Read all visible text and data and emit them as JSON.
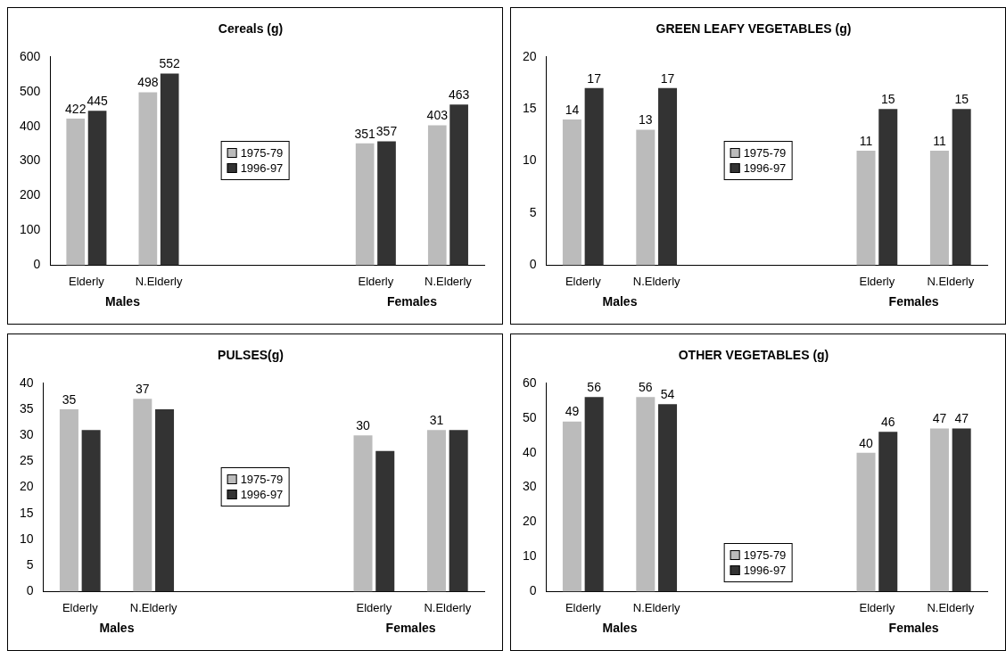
{
  "chart_data": [
    {
      "type": "bar",
      "title": "Cereals (g)",
      "categories": [
        "Elderly",
        "N.Elderly",
        null,
        null,
        "Elderly",
        "N.Elderly"
      ],
      "ylim": [
        0,
        600
      ],
      "yticks": [
        0,
        100,
        200,
        300,
        400,
        500,
        600
      ],
      "grid": false,
      "legend": "center",
      "data_labels": true,
      "annotations": [
        "Males",
        "Females"
      ],
      "series": [
        {
          "name": "1975-79",
          "color": "#bbbbbb",
          "values": [
            422,
            498,
            null,
            null,
            351,
            403
          ]
        },
        {
          "name": "1996-97",
          "color": "#333333",
          "values": [
            445,
            552,
            null,
            null,
            357,
            463
          ]
        }
      ]
    },
    {
      "type": "bar",
      "title": "GREEN LEAFY VEGETABLES (g)",
      "categories": [
        "Elderly",
        "N.Elderly",
        null,
        null,
        "Elderly",
        "N.Elderly"
      ],
      "ylim": [
        0,
        20
      ],
      "yticks": [
        0,
        5,
        10,
        15,
        20
      ],
      "grid": false,
      "legend": "center",
      "data_labels": true,
      "annotations": [
        "Males",
        "Females"
      ],
      "series": [
        {
          "name": "1975-79",
          "color": "#bbbbbb",
          "values": [
            14,
            13,
            null,
            null,
            11,
            11
          ]
        },
        {
          "name": "1996-97",
          "color": "#333333",
          "values": [
            17,
            17,
            null,
            null,
            15,
            15
          ]
        }
      ]
    },
    {
      "type": "bar",
      "title": "PULSES(g)",
      "categories": [
        "Elderly",
        "N.Elderly",
        null,
        null,
        "Elderly",
        "N.Elderly"
      ],
      "ylim": [
        0,
        40
      ],
      "yticks": [
        0,
        5,
        10,
        15,
        20,
        25,
        30,
        35,
        40
      ],
      "grid": false,
      "legend": "center",
      "annotations": [
        "Males",
        "Females"
      ],
      "series": [
        {
          "name": "1975-79",
          "color": "#bbbbbb",
          "values": [
            35,
            37,
            null,
            null,
            30,
            31
          ],
          "value_labels": [
            "35",
            "37",
            null,
            null,
            "30",
            "31"
          ]
        },
        {
          "name": "1996-97",
          "color": "#333333",
          "values": [
            31,
            35,
            null,
            null,
            27,
            31
          ]
        }
      ]
    },
    {
      "type": "bar",
      "title": "OTHER VEGETABLES (g)",
      "categories": [
        "Elderly",
        "N.Elderly",
        null,
        null,
        "Elderly",
        "N.Elderly"
      ],
      "ylim": [
        0,
        60
      ],
      "yticks": [
        0,
        10,
        20,
        30,
        40,
        50,
        60
      ],
      "grid": false,
      "legend": "bottom",
      "data_labels": true,
      "annotations": [
        "Males",
        "Females"
      ],
      "series": [
        {
          "name": "1975-79",
          "color": "#bbbbbb",
          "values": [
            49,
            56,
            null,
            null,
            40,
            47
          ]
        },
        {
          "name": "1996-97",
          "color": "#333333",
          "values": [
            56,
            54,
            null,
            null,
            46,
            47
          ]
        }
      ]
    }
  ]
}
